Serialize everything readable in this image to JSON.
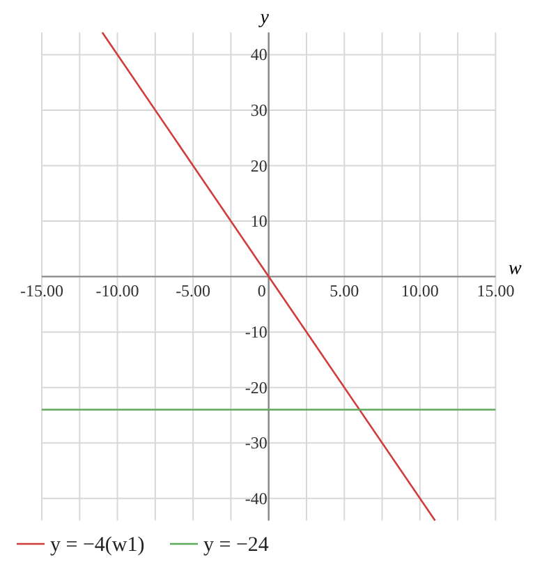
{
  "chart_data": {
    "type": "line",
    "xlabel": "w",
    "ylabel": "y",
    "xlim": [
      -15,
      15
    ],
    "ylim": [
      -44,
      44
    ],
    "xticks": [
      {
        "value": -15,
        "label": "-15.00"
      },
      {
        "value": -12.5,
        "label": null
      },
      {
        "value": -10,
        "label": "-10.00"
      },
      {
        "value": -7.5,
        "label": null
      },
      {
        "value": -5,
        "label": "-5.00"
      },
      {
        "value": -2.5,
        "label": null
      },
      0,
      {
        "value": 2.5,
        "label": null
      },
      {
        "value": 5,
        "label": "5.00"
      },
      {
        "value": 7.5,
        "label": null
      },
      {
        "value": 10,
        "label": "10.00"
      },
      {
        "value": 12.5,
        "label": null
      },
      {
        "value": 15,
        "label": "15.00"
      }
    ],
    "yticks": [
      -40,
      -30,
      -20,
      -10,
      10,
      20,
      30,
      40
    ],
    "grid": true,
    "legend": "bottom",
    "line_style": "solid",
    "series": [
      {
        "name": "y = −4(w1)",
        "color": "#d03c3c",
        "x": [
          -11,
          11
        ],
        "values": [
          44,
          -44
        ]
      },
      {
        "name": "y = −24",
        "color": "#5ea85a",
        "x": [
          -15,
          15
        ],
        "values": [
          -24,
          -24
        ]
      }
    ]
  }
}
